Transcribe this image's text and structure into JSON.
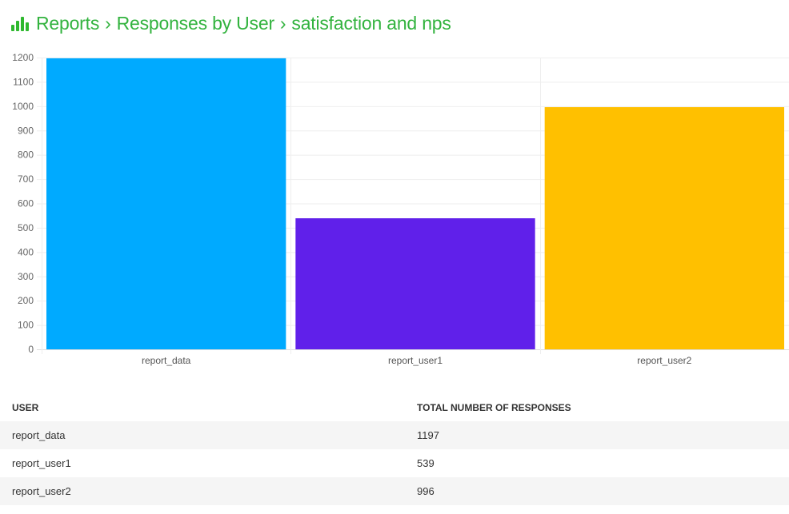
{
  "header": {
    "icon": "bar-chart-icon",
    "crumbs": [
      "Reports",
      "Responses by User",
      "satisfaction and nps"
    ],
    "separator": "›",
    "color": "#33b33f"
  },
  "chart_data": {
    "type": "bar",
    "categories": [
      "report_data",
      "report_user1",
      "report_user2"
    ],
    "values": [
      1197,
      539,
      996
    ],
    "colors": [
      "#00aaff",
      "#6020ea",
      "#ffc000"
    ],
    "ylim": [
      0,
      1200
    ],
    "yticks": [
      0,
      100,
      200,
      300,
      400,
      500,
      600,
      700,
      800,
      900,
      1000,
      1100,
      1200
    ],
    "grid": true,
    "legend": "none"
  },
  "table": {
    "columns": [
      "USER",
      "TOTAL NUMBER OF RESPONSES"
    ],
    "rows": [
      [
        "report_data",
        "1197"
      ],
      [
        "report_user1",
        "539"
      ],
      [
        "report_user2",
        "996"
      ]
    ]
  }
}
